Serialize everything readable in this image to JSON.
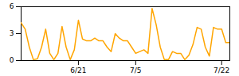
{
  "chart_data": {
    "type": "line",
    "x": [
      0,
      1,
      2,
      3,
      4,
      5,
      6,
      7,
      8,
      9,
      10,
      11,
      12,
      13,
      14,
      15,
      16,
      17,
      18,
      19,
      20,
      21,
      22,
      23,
      24,
      25,
      26,
      27,
      28,
      29,
      30,
      31,
      32,
      33,
      34,
      35,
      36,
      37,
      38,
      39,
      40,
      41,
      42,
      43,
      44,
      45,
      46,
      47,
      48,
      49,
      50,
      51
    ],
    "values": [
      4.2,
      3.5,
      1.5,
      0.1,
      0.2,
      1.5,
      3.5,
      0.8,
      0.1,
      0.8,
      3.8,
      1.5,
      0.1,
      1.2,
      4.5,
      2.4,
      2.2,
      2.2,
      2.5,
      2.2,
      2.2,
      1.5,
      1.0,
      3.0,
      2.5,
      2.2,
      2.2,
      1.5,
      0.8,
      1.0,
      1.2,
      0.8,
      5.8,
      4.0,
      1.5,
      0.1,
      0.1,
      1.0,
      0.8,
      0.8,
      0.1,
      0.6,
      1.8,
      3.7,
      3.5,
      1.5,
      0.5,
      3.7,
      3.5,
      3.5,
      2.0,
      2.0
    ],
    "color": "#FFA500",
    "xlim": [
      0,
      51
    ],
    "xticks": [
      {
        "value": 14,
        "label": "6/21"
      },
      {
        "value": 28,
        "label": "7/5"
      },
      {
        "value": 49,
        "label": "7/22"
      }
    ],
    "ylim": [
      0,
      6
    ],
    "yticks": [
      0,
      3,
      6
    ],
    "grid": false
  }
}
